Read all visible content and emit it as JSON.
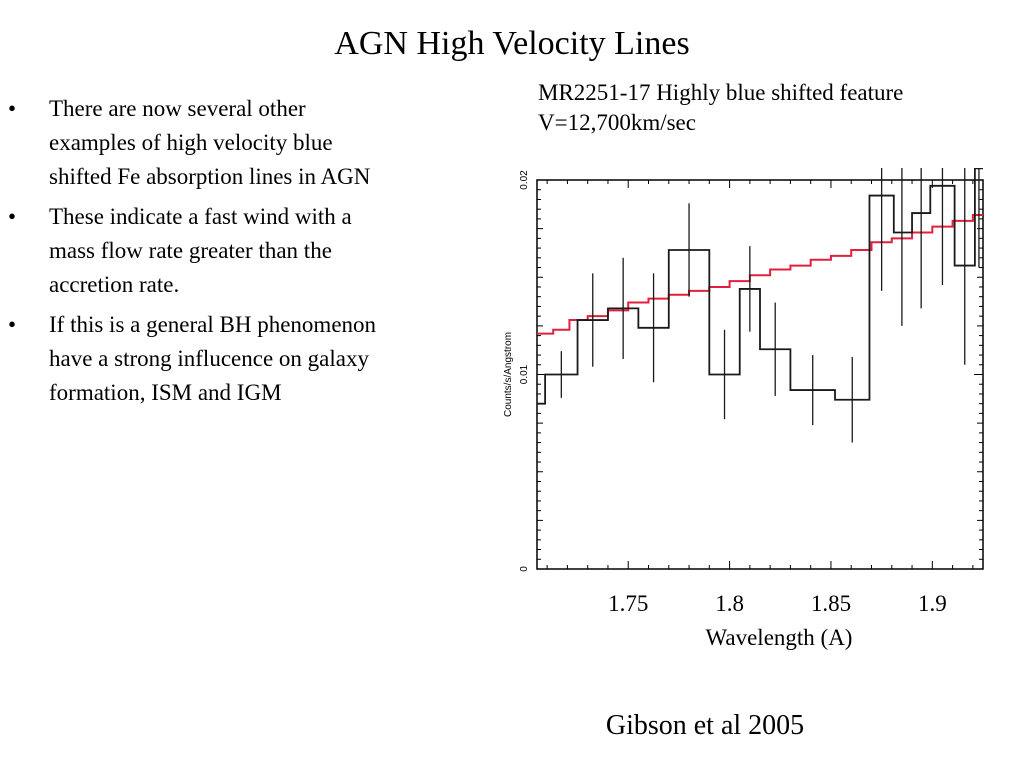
{
  "slide": {
    "title": "AGN High Velocity Lines",
    "bullets": [
      {
        "dot": "•",
        "text": [
          "There are now several other",
          "examples of high velocity blue",
          "shifted Fe absorption lines in AGN"
        ]
      },
      {
        "dot": "•",
        "text": [
          "These indicate a fast wind with a",
          "mass flow rate greater than the",
          "accretion rate."
        ]
      },
      {
        "dot": "•",
        "text": [
          "If this is a general BH phenomenon",
          "have a strong influcence on galaxy",
          "formation, ISM  and IGM"
        ]
      }
    ],
    "caption": [
      "MR2251-17 Highly blue shifted  feature",
      "V=12,700km/sec"
    ],
    "citation": "Gibson et al 2005"
  },
  "chart_data": {
    "type": "line",
    "xlabel": "Wavelength (A)",
    "ylabel": "Counts/s/Angstrom",
    "xlim": [
      1.705,
      1.925
    ],
    "ylim": [
      0,
      0.02
    ],
    "x_tick_labels": [
      "1.75",
      "1.8",
      "1.85",
      "1.9"
    ],
    "x_tick_values": [
      1.75,
      1.8,
      1.85,
      1.9
    ],
    "y_tick_labels": [
      "0",
      "0.01",
      "0.02"
    ],
    "y_tick_values": [
      0,
      0.01,
      0.02
    ],
    "colors": {
      "data": "#1a1a1a",
      "model": "#e0203c",
      "axis": "#000000"
    },
    "series": [
      {
        "role": "data",
        "style": "step",
        "bin_edges": [
          1.705,
          1.709,
          1.725,
          1.74,
          1.755,
          1.77,
          1.79,
          1.805,
          1.815,
          1.83,
          1.852,
          1.869,
          1.881,
          1.89,
          1.899,
          1.911,
          1.921,
          1.925
        ],
        "values": [
          0.0085,
          0.01,
          0.0128,
          0.0134,
          0.0124,
          0.0164,
          0.01,
          0.0144,
          0.0113,
          0.0092,
          0.0087,
          0.0192,
          0.0173,
          0.0183,
          0.0197,
          0.0156,
          0.0206
        ],
        "errors": [
          0.0,
          0.0012,
          0.0024,
          0.0026,
          0.0028,
          0.0024,
          0.0023,
          0.0022,
          0.0024,
          0.0018,
          0.0022,
          0.0049,
          0.0048,
          0.0049,
          0.0051,
          0.0051,
          0.0051
        ],
        "error_x": [
          1.707,
          1.717,
          1.7325,
          1.7475,
          1.7625,
          1.78,
          1.7975,
          1.81,
          1.8225,
          1.841,
          1.8605,
          1.875,
          1.885,
          1.8945,
          1.905,
          1.916,
          1.923
        ]
      },
      {
        "role": "model",
        "style": "step",
        "bin_edges": [
          1.705,
          1.713,
          1.721,
          1.73,
          1.74,
          1.75,
          1.76,
          1.77,
          1.78,
          1.79,
          1.8,
          1.81,
          1.82,
          1.83,
          1.84,
          1.85,
          1.86,
          1.87,
          1.88,
          1.89,
          1.9,
          1.91,
          1.92,
          1.925
        ],
        "values": [
          0.0121,
          0.0123,
          0.0128,
          0.013,
          0.0133,
          0.0137,
          0.0139,
          0.0141,
          0.0143,
          0.0145,
          0.0148,
          0.0151,
          0.0154,
          0.0156,
          0.0159,
          0.0161,
          0.0164,
          0.0168,
          0.017,
          0.0173,
          0.0176,
          0.0179,
          0.0182
        ]
      }
    ]
  }
}
